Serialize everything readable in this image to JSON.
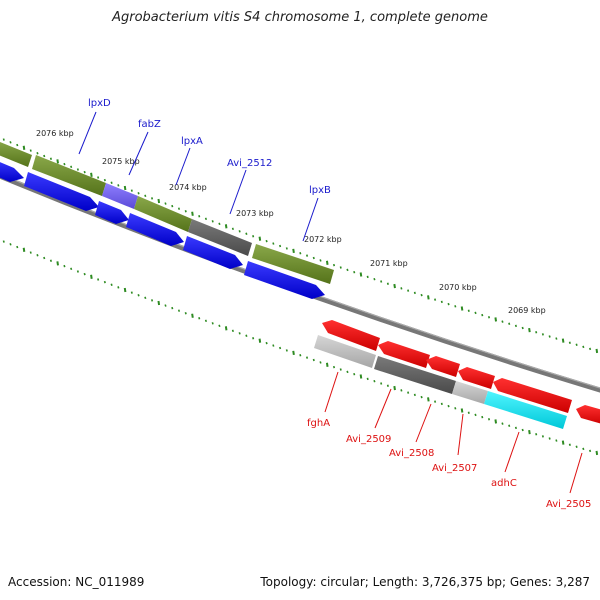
{
  "title": "Agrobacterium vitis S4 chromosome 1, complete genome",
  "footer": {
    "accession": "Accession: NC_011989",
    "summary": "Topology: circular; Length: 3,726,375 bp; Genes: 3,287"
  },
  "ticks": [
    "2076 kbp",
    "2075 kbp",
    "2074 kbp",
    "2073 kbp",
    "2072 kbp",
    "2071 kbp",
    "2070 kbp",
    "2069 kbp"
  ],
  "genes_forward": [
    "lpxD",
    "fabZ",
    "lpxA",
    "Avi_2512",
    "lpxB"
  ],
  "genes_reverse": [
    "fghA",
    "Avi_2509",
    "Avi_2508",
    "Avi_2507",
    "adhC",
    "Avi_2505"
  ],
  "colors": {
    "forward_label": "#1a1acc",
    "reverse_label": "#dd1111",
    "olive": "#6b8e23",
    "blue": "#0000ee",
    "red": "#ee0000",
    "cyan": "#00e5ee",
    "gray_dark": "#606060",
    "gray_light": "#bdbdbd",
    "purple": "#7b68ee",
    "tick_green": "#2e8b22"
  }
}
